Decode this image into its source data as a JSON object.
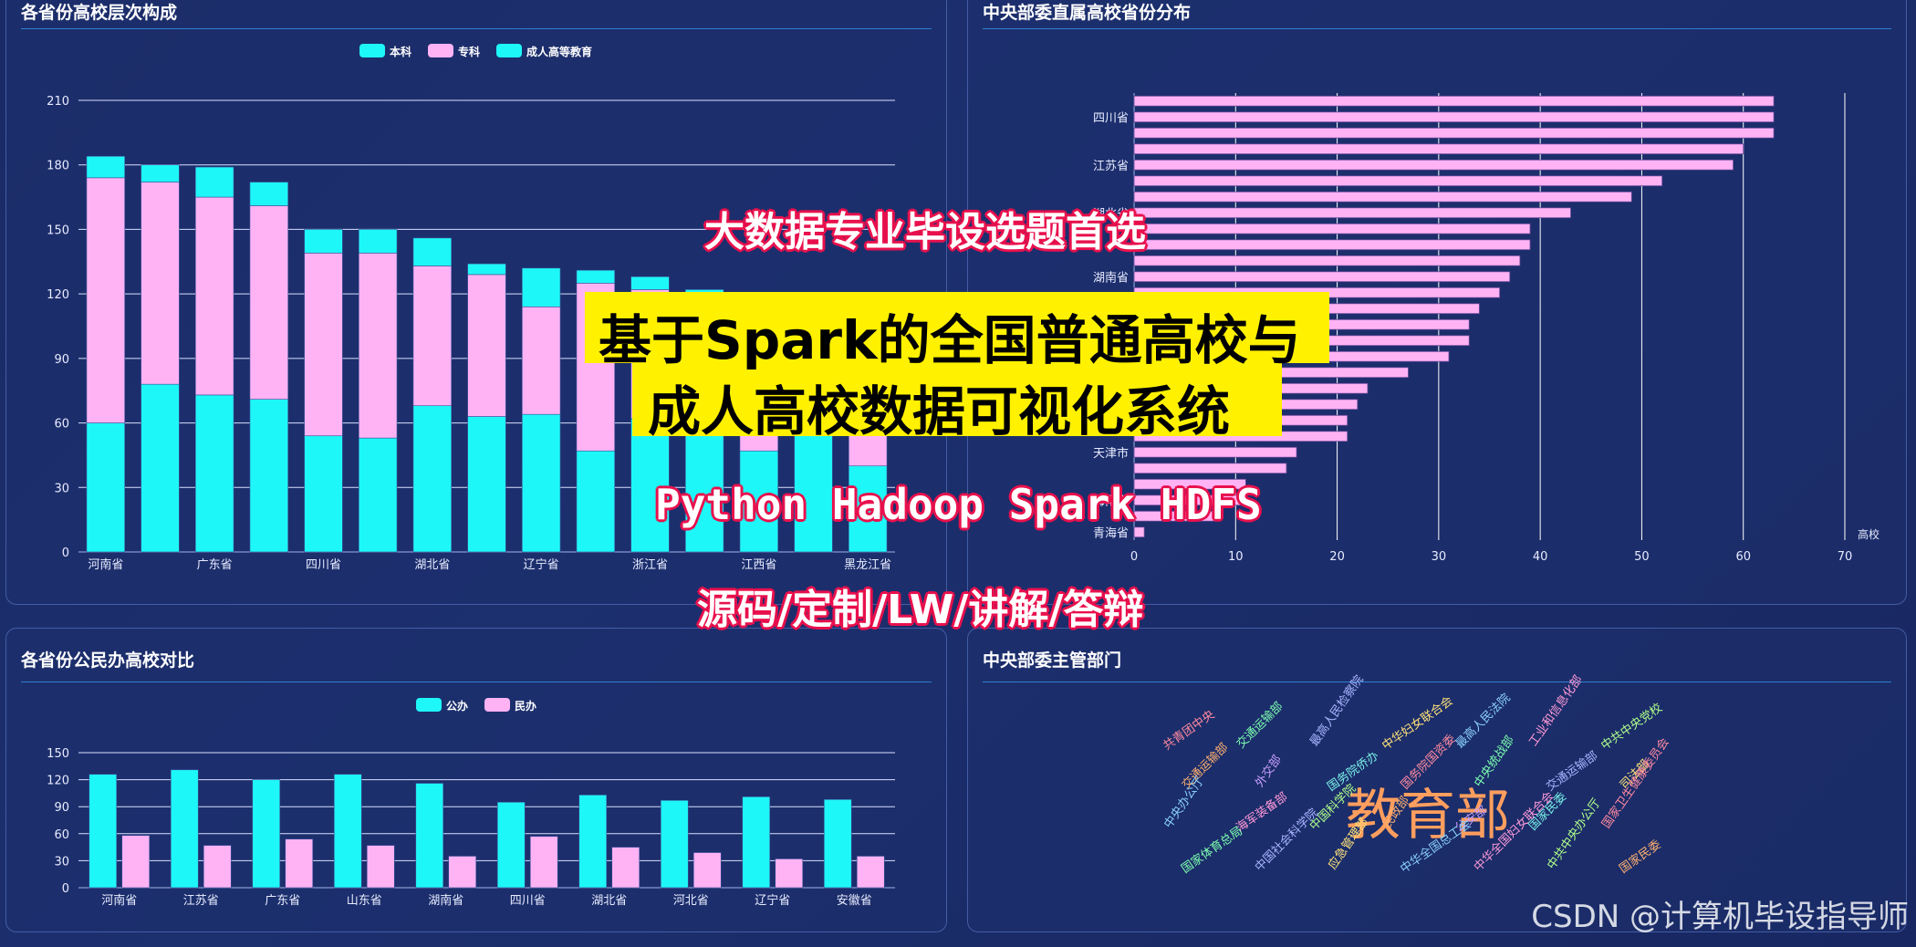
{
  "panels": {
    "p1_title": "各省份高校层次构成",
    "p2_title": "中央部委直属高校省份分布",
    "p3_title": "各省份公民办高校对比",
    "p4_title": "中央部委主管部门"
  },
  "overlay": {
    "line1": "大数据专业毕设选题首选",
    "line2a": "基于Spark的全国普通高校与",
    "line2b": "成人高校数据可视化系统",
    "line3": "Python Hadoop Spark HDFS",
    "line4": "源码/定制/LW/讲解/答辩"
  },
  "watermark": "CSDN @计算机毕设指导师",
  "colors": {
    "cyan": "#1ef7f7",
    "pink": "#ffb3f5",
    "bg": "#16245a"
  },
  "chart_data": [
    {
      "type": "bar",
      "title": "各省份高校层次构成",
      "stacked": true,
      "legend_position": "top-center",
      "categories": [
        "河南省",
        "",
        "广东省",
        "",
        "四川省",
        "",
        "湖北省",
        "",
        "辽宁省",
        "",
        "浙江省",
        "",
        "江西省",
        "",
        "黑龙江省"
      ],
      "series": [
        {
          "name": "本科",
          "color": "#1ef7f7",
          "values": [
            60,
            78,
            73,
            71,
            54,
            53,
            68,
            63,
            64,
            47,
            62,
            60,
            47,
            60,
            40
          ]
        },
        {
          "name": "专科",
          "color": "#ffb3f5",
          "values": [
            114,
            94,
            92,
            90,
            85,
            86,
            65,
            66,
            50,
            78,
            60,
            55,
            60,
            52,
            70
          ]
        },
        {
          "name": "成人高等教育",
          "color": "#1ef7f7",
          "values": [
            10,
            8,
            14,
            11,
            11,
            11,
            13,
            5,
            18,
            6,
            6,
            7,
            8,
            4,
            9
          ]
        }
      ],
      "yticks": [
        0,
        30,
        60,
        90,
        120,
        150,
        180,
        210
      ],
      "ylim": [
        0,
        210
      ],
      "grid": true
    },
    {
      "type": "bar",
      "orientation": "horizontal",
      "title": "中央部委直属高校省份分布",
      "ylabels_shown": [
        "四川省",
        "江苏省",
        "湖北省",
        "湖南省",
        "天津市",
        "海南省",
        "青海省"
      ],
      "values": [
        63,
        63,
        63,
        60,
        59,
        52,
        49,
        43,
        39,
        39,
        38,
        37,
        36,
        34,
        33,
        33,
        31,
        27,
        23,
        22,
        21,
        21,
        16,
        15,
        11,
        11,
        8,
        1
      ],
      "xticks": [
        0,
        10,
        20,
        30,
        40,
        50,
        60,
        70
      ],
      "xlim": [
        0,
        70
      ],
      "xlabel": "高校",
      "color": "#ffb3f5",
      "grid": true
    },
    {
      "type": "bar",
      "title": "各省份公民办高校对比",
      "legend_position": "top-center",
      "categories": [
        "河南省",
        "江苏省",
        "广东省",
        "山东省",
        "湖南省",
        "四川省",
        "湖北省",
        "河北省",
        "辽宁省",
        "安徽省"
      ],
      "series": [
        {
          "name": "公办",
          "color": "#1ef7f7",
          "values": [
            126,
            131,
            120,
            126,
            116,
            95,
            103,
            97,
            101,
            98
          ]
        },
        {
          "name": "民办",
          "color": "#ffb3f5",
          "values": [
            58,
            47,
            54,
            47,
            35,
            57,
            45,
            39,
            32,
            35
          ]
        }
      ],
      "yticks": [
        0,
        30,
        60,
        90,
        120,
        150
      ],
      "ylim": [
        0,
        150
      ],
      "grid": true
    }
  ],
  "wordcloud": {
    "big": "教育部",
    "words": [
      "共青团中央",
      "交通运输部",
      "最高人民检察院",
      "中华妇女联合会",
      "最高人民法院",
      "工业和信息化部",
      "中共中央党校",
      "交通运输部",
      "外交部",
      "国务院侨办",
      "国务院国资委",
      "中央统战部",
      "交通运输部",
      "司法部",
      "中央办公厅",
      "海军装备部",
      "中国科学院",
      "民政部",
      "公安部",
      "国家民委",
      "国家卫生健康委员会",
      "国家体育总局",
      "中国社会科学院",
      "应急管理部",
      "中华全国总工会",
      "中华全国妇女联合会",
      "中共中央办公厅",
      "国家民委"
    ]
  }
}
